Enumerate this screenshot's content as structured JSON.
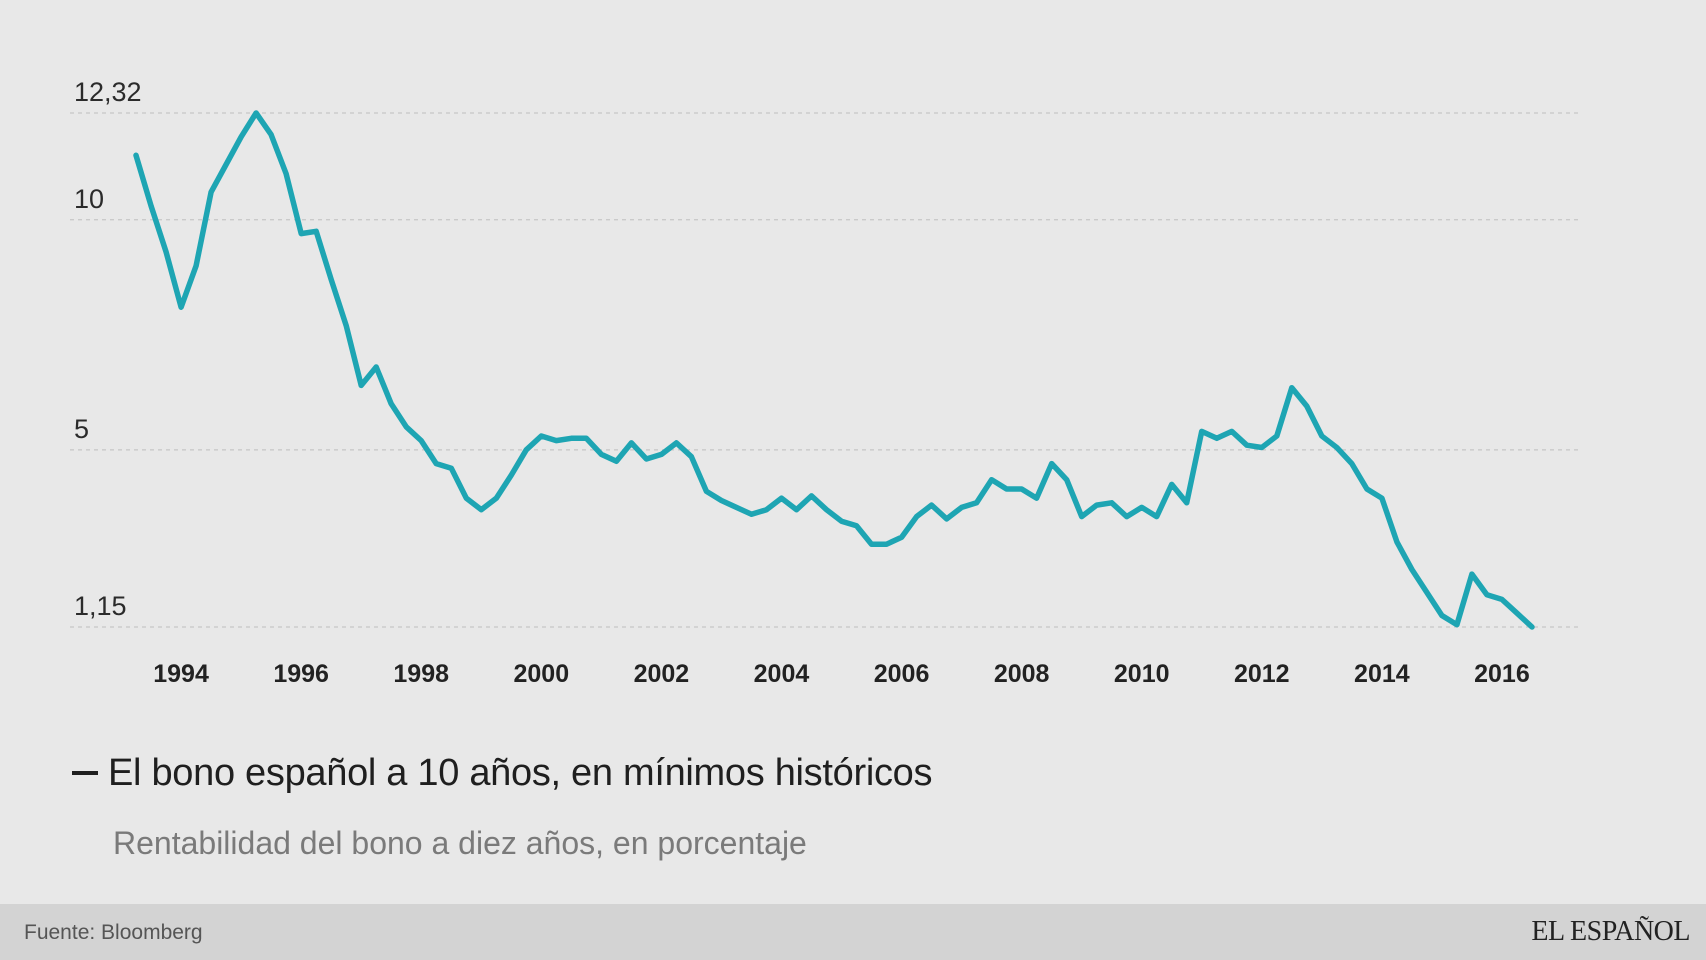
{
  "chart_data": {
    "type": "line",
    "title": "El bono español a 10 años, en mínimos históricos",
    "subtitle": "Rentabilidad del bono a diez años, en porcentaje",
    "y_ticks": [
      {
        "value": 12.32,
        "label": "12,32"
      },
      {
        "value": 10,
        "label": "10"
      },
      {
        "value": 5,
        "label": "5"
      },
      {
        "value": 1.15,
        "label": "1,15"
      }
    ],
    "x_ticks": [
      1994,
      1996,
      1998,
      2000,
      2002,
      2004,
      2006,
      2008,
      2010,
      2012,
      2014,
      2016
    ],
    "xlim": [
      1992.15,
      2017.3
    ],
    "ylim": [
      1.15,
      12.32
    ],
    "grid": true,
    "series": [
      {
        "color": "#1ea5b3",
        "points": [
          [
            1993.25,
            11.4
          ],
          [
            1993.5,
            10.3
          ],
          [
            1993.75,
            9.3
          ],
          [
            1994.0,
            8.1
          ],
          [
            1994.25,
            9.0
          ],
          [
            1994.5,
            10.6
          ],
          [
            1994.75,
            11.2
          ],
          [
            1995.0,
            11.8
          ],
          [
            1995.25,
            12.32
          ],
          [
            1995.5,
            11.85
          ],
          [
            1995.75,
            11.0
          ],
          [
            1996.0,
            9.7
          ],
          [
            1996.25,
            9.75
          ],
          [
            1996.5,
            8.7
          ],
          [
            1996.75,
            7.7
          ],
          [
            1997.0,
            6.4
          ],
          [
            1997.25,
            6.8
          ],
          [
            1997.5,
            6.0
          ],
          [
            1997.75,
            5.5
          ],
          [
            1998.0,
            5.2
          ],
          [
            1998.25,
            4.7
          ],
          [
            1998.5,
            4.6
          ],
          [
            1998.75,
            3.95
          ],
          [
            1999.0,
            3.7
          ],
          [
            1999.25,
            3.95
          ],
          [
            1999.5,
            4.45
          ],
          [
            1999.75,
            5.0
          ],
          [
            2000.0,
            5.3
          ],
          [
            2000.25,
            5.2
          ],
          [
            2000.5,
            5.25
          ],
          [
            2000.75,
            5.25
          ],
          [
            2001.0,
            4.9
          ],
          [
            2001.25,
            4.75
          ],
          [
            2001.5,
            5.15
          ],
          [
            2001.75,
            4.8
          ],
          [
            2002.0,
            4.9
          ],
          [
            2002.25,
            5.15
          ],
          [
            2002.5,
            4.85
          ],
          [
            2002.75,
            4.1
          ],
          [
            2003.0,
            3.9
          ],
          [
            2003.25,
            3.75
          ],
          [
            2003.5,
            3.6
          ],
          [
            2003.75,
            3.7
          ],
          [
            2004.0,
            3.95
          ],
          [
            2004.25,
            3.7
          ],
          [
            2004.5,
            4.0
          ],
          [
            2004.75,
            3.7
          ],
          [
            2005.0,
            3.45
          ],
          [
            2005.25,
            3.35
          ],
          [
            2005.5,
            2.95
          ],
          [
            2005.75,
            2.95
          ],
          [
            2006.0,
            3.1
          ],
          [
            2006.25,
            3.55
          ],
          [
            2006.5,
            3.8
          ],
          [
            2006.75,
            3.5
          ],
          [
            2007.0,
            3.75
          ],
          [
            2007.25,
            3.85
          ],
          [
            2007.5,
            4.35
          ],
          [
            2007.75,
            4.15
          ],
          [
            2008.0,
            4.15
          ],
          [
            2008.25,
            3.95
          ],
          [
            2008.5,
            4.7
          ],
          [
            2008.75,
            4.35
          ],
          [
            2009.0,
            3.55
          ],
          [
            2009.25,
            3.8
          ],
          [
            2009.5,
            3.85
          ],
          [
            2009.75,
            3.55
          ],
          [
            2010.0,
            3.75
          ],
          [
            2010.25,
            3.55
          ],
          [
            2010.5,
            4.25
          ],
          [
            2010.75,
            3.85
          ],
          [
            2011.0,
            5.4
          ],
          [
            2011.25,
            5.25
          ],
          [
            2011.5,
            5.4
          ],
          [
            2011.75,
            5.1
          ],
          [
            2012.0,
            5.05
          ],
          [
            2012.25,
            5.3
          ],
          [
            2012.5,
            6.35
          ],
          [
            2012.75,
            5.95
          ],
          [
            2013.0,
            5.3
          ],
          [
            2013.25,
            5.05
          ],
          [
            2013.5,
            4.7
          ],
          [
            2013.75,
            4.15
          ],
          [
            2014.0,
            3.95
          ],
          [
            2014.25,
            3.0
          ],
          [
            2014.5,
            2.4
          ],
          [
            2014.75,
            1.9
          ],
          [
            2015.0,
            1.4
          ],
          [
            2015.25,
            1.2
          ],
          [
            2015.5,
            2.3
          ],
          [
            2015.75,
            1.85
          ],
          [
            2016.0,
            1.75
          ],
          [
            2016.25,
            1.45
          ],
          [
            2016.5,
            1.15
          ]
        ]
      }
    ]
  },
  "footer": {
    "source": "Fuente: Bloomberg",
    "brand": "EL ESPAÑOL"
  }
}
